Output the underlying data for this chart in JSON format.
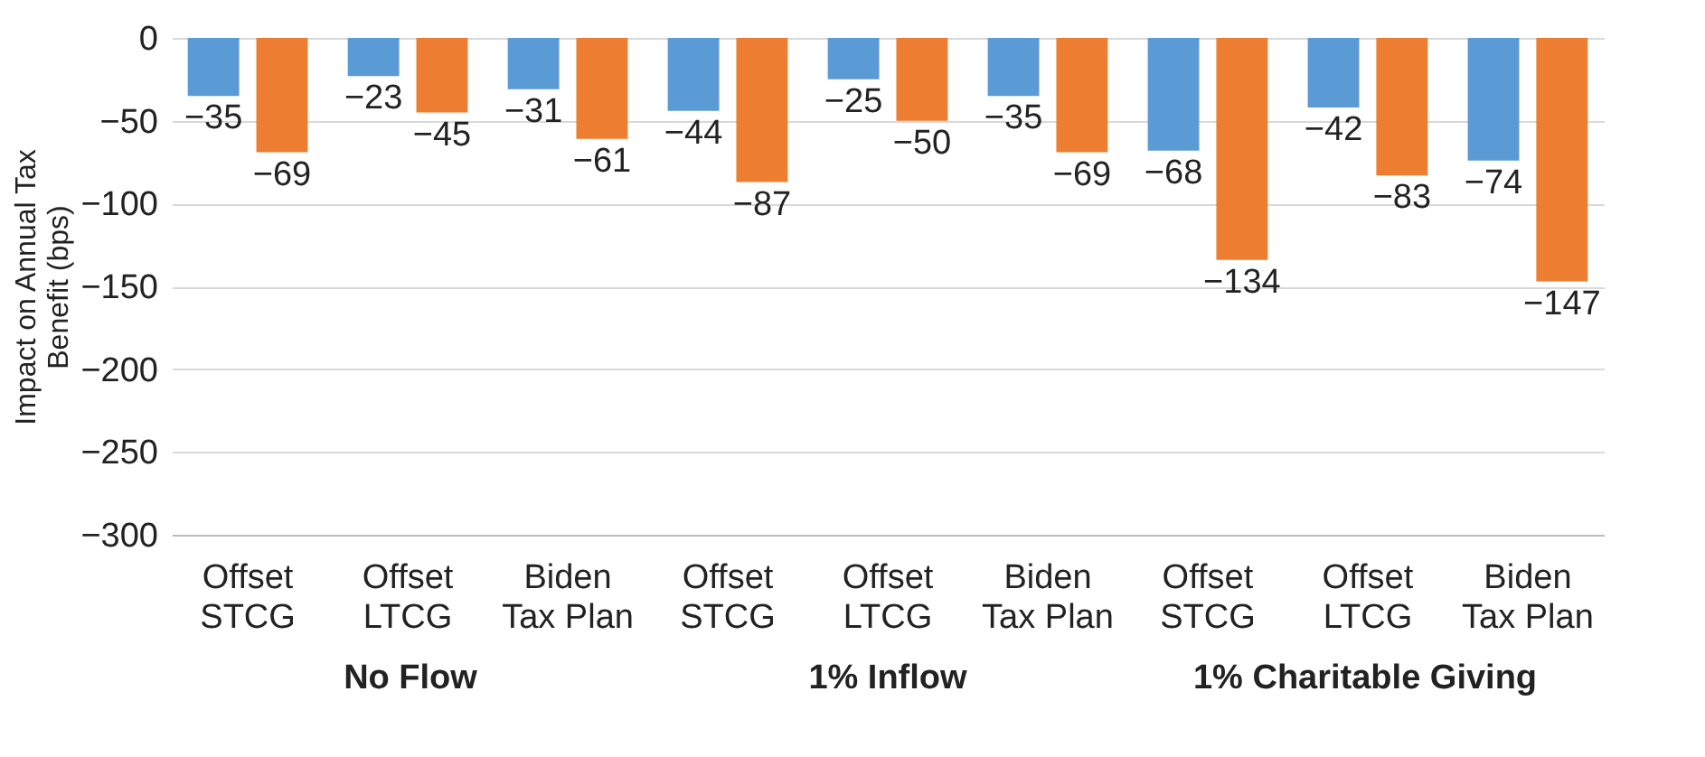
{
  "chart_data": {
    "type": "bar",
    "categories": [
      "Offset\nSTCG",
      "Offset\nLTCG",
      "Biden\nTax Plan",
      "Offset\nSTCG",
      "Offset\nLTCG",
      "Biden\nTax Plan",
      "Offset\nSTCG",
      "Offset\nLTCG",
      "Biden\nTax Plan"
    ],
    "series": [
      {
        "color": "#5b9bd5",
        "values": [
          -35,
          -23,
          -31,
          -44,
          -25,
          -35,
          -68,
          -42,
          -74
        ]
      },
      {
        "color": "#ed7d31",
        "values": [
          -69,
          -45,
          -61,
          -87,
          -50,
          -69,
          -134,
          -83,
          -147
        ]
      }
    ],
    "ylabel": "Impact on Annual Tax Benefit (bps)",
    "ylim": [
      -300,
      0
    ],
    "yticks": [
      -300,
      -250,
      -200,
      -150,
      -100,
      -50,
      0
    ],
    "grid": "y",
    "data_labels": true,
    "annotations": [
      "No Flow",
      "1% Inflow",
      "1% Charitable Giving"
    ]
  }
}
